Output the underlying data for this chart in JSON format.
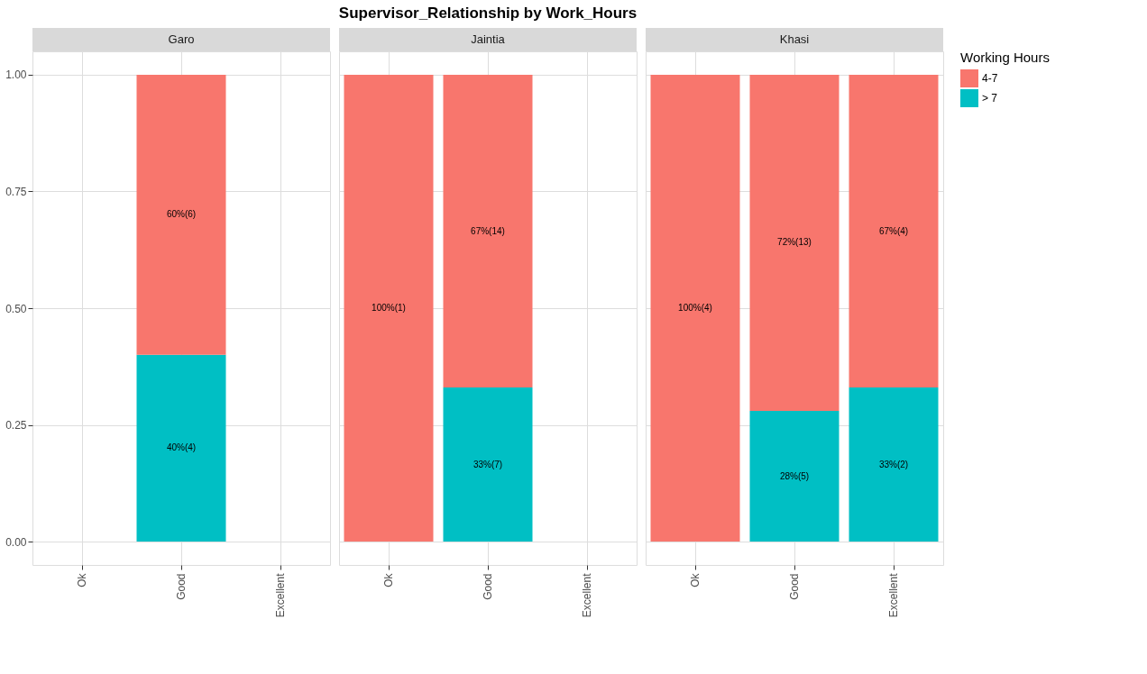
{
  "chart_data": [
    {
      "type": "bar",
      "subtitle": "Garo",
      "categories": [
        "Ok",
        "Good",
        "Excellent"
      ],
      "stacked": true,
      "grid": true,
      "legend": "right",
      "ylim": [
        -0.05,
        1.05
      ],
      "yticks": [
        {
          "value": 0,
          "label": "0.00"
        },
        {
          "value": 0.25,
          "label": "0.25"
        },
        {
          "value": 0.5,
          "label": "0.50"
        },
        {
          "value": 0.75,
          "label": "0.75"
        },
        {
          "value": 1,
          "label": "1.00"
        }
      ],
      "series": [
        {
          "name": "> 7",
          "color": "#00bfc4",
          "values": [
            null,
            0.4,
            null
          ],
          "value_labels": [
            null,
            "40%(4)",
            null
          ]
        },
        {
          "name": "4-7",
          "color": "#f8766d",
          "values": [
            null,
            0.6,
            null
          ],
          "value_labels": [
            null,
            "60%(6)",
            null
          ]
        }
      ]
    },
    {
      "type": "bar",
      "title": "Supervisor_Relationship by Work_Hours",
      "subtitle": "Jaintia",
      "categories": [
        "Ok",
        "Good",
        "Excellent"
      ],
      "stacked": true,
      "grid": true,
      "legend": "right",
      "tick_labels": "x",
      "ylim": [
        -0.05,
        1.05
      ],
      "yticks": [
        0,
        0.25,
        0.5,
        0.75,
        1
      ],
      "series": [
        {
          "name": "> 7",
          "color": "#00bfc4",
          "values": [
            null,
            0.33,
            null
          ],
          "value_labels": [
            null,
            "33%(7)",
            null
          ]
        },
        {
          "name": "4-7",
          "color": "#f8766d",
          "values": [
            1,
            0.67,
            null
          ],
          "value_labels": [
            "100%(1)",
            "67%(14)",
            null
          ]
        }
      ]
    },
    {
      "type": "bar",
      "subtitle": "Khasi",
      "categories": [
        "Ok",
        "Good",
        "Excellent"
      ],
      "stacked": true,
      "grid": true,
      "legend": "right",
      "legend_title": "Working Hours",
      "tick_labels": "x",
      "ylim": [
        -0.05,
        1.05
      ],
      "yticks": [
        0,
        0.25,
        0.5,
        0.75,
        1
      ],
      "series": [
        {
          "name": "> 7",
          "color": "#00bfc4",
          "values": [
            null,
            0.28,
            0.33
          ],
          "value_labels": [
            null,
            "28%(5)",
            "33%(2)"
          ]
        },
        {
          "name": "4-7",
          "color": "#f8766d",
          "values": [
            1,
            0.72,
            0.67
          ],
          "value_labels": [
            "100%(4)",
            "72%(13)",
            "67%(4)"
          ]
        }
      ]
    }
  ]
}
